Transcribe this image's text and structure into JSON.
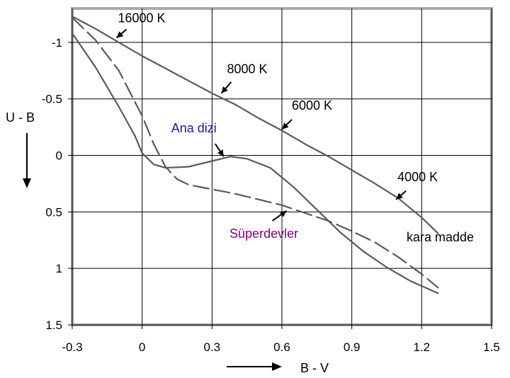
{
  "chart_data": {
    "type": "line",
    "xlabel": "B - V",
    "ylabel": "U - B",
    "xlim": [
      -0.3,
      1.5
    ],
    "ylim": [
      1.5,
      -1.3
    ],
    "x_ticks": [
      "-0.3",
      "0",
      "0.3",
      "0.6",
      "0.9",
      "1.2",
      "1.5"
    ],
    "y_ticks": [
      "-1",
      "-0.5",
      "0",
      "0.5",
      "1",
      "1.5"
    ],
    "x_tick_values": [
      -0.3,
      0,
      0.3,
      0.6,
      0.9,
      1.2,
      1.5
    ],
    "y_tick_values": [
      -1,
      -0.5,
      0,
      0.5,
      1,
      1.5
    ],
    "grid": true,
    "series": [
      {
        "name": "kara madde",
        "style": "solid",
        "x": [
          -0.3,
          -0.2,
          -0.1,
          0.0,
          0.1,
          0.2,
          0.3,
          0.4,
          0.5,
          0.6,
          0.7,
          0.8,
          0.9,
          1.0,
          1.1,
          1.2,
          1.27
        ],
        "y": [
          -1.23,
          -1.12,
          -1.0,
          -0.88,
          -0.77,
          -0.66,
          -0.55,
          -0.45,
          -0.33,
          -0.22,
          -0.1,
          0.01,
          0.13,
          0.25,
          0.38,
          0.55,
          0.69
        ]
      },
      {
        "name": "Ana dizi",
        "style": "solid",
        "x": [
          -0.3,
          -0.2,
          -0.1,
          -0.03,
          0.0,
          0.05,
          0.1,
          0.2,
          0.3,
          0.38,
          0.45,
          0.55,
          0.65,
          0.75,
          0.85,
          0.95,
          1.05,
          1.15,
          1.27
        ],
        "y": [
          -1.08,
          -0.78,
          -0.43,
          -0.17,
          -0.02,
          0.08,
          0.11,
          0.1,
          0.05,
          0.01,
          0.03,
          0.11,
          0.28,
          0.48,
          0.68,
          0.85,
          0.99,
          1.11,
          1.22
        ]
      },
      {
        "name": "Süperdevler",
        "style": "dashed",
        "x": [
          -0.3,
          -0.2,
          -0.1,
          0.0,
          0.05,
          0.1,
          0.15,
          0.2,
          0.3,
          0.4,
          0.5,
          0.6,
          0.7,
          0.8,
          0.9,
          1.0,
          1.1,
          1.2,
          1.27
        ],
        "y": [
          -1.22,
          -1.02,
          -0.75,
          -0.35,
          -0.1,
          0.1,
          0.21,
          0.26,
          0.3,
          0.34,
          0.39,
          0.44,
          0.51,
          0.58,
          0.67,
          0.77,
          0.9,
          1.05,
          1.17
        ]
      }
    ],
    "annotations": [
      {
        "text": "16000 K",
        "color": "#000000",
        "x": -0.11,
        "y": -1.04
      },
      {
        "text": "8000 K",
        "color": "#000000",
        "x": 0.34,
        "y": -0.55
      },
      {
        "text": "6000 K",
        "color": "#000000",
        "x": 0.6,
        "y": -0.23
      },
      {
        "text": "4000 K",
        "color": "#000000",
        "x": 1.09,
        "y": 0.39
      },
      {
        "text": "Ana dizi",
        "color": "#1a1aaa",
        "x": 0.35,
        "y": 0.01
      },
      {
        "text": "Süperdevler",
        "color": "#800080",
        "x": 0.62,
        "y": 0.49
      }
    ],
    "series_label": "kara madde"
  }
}
